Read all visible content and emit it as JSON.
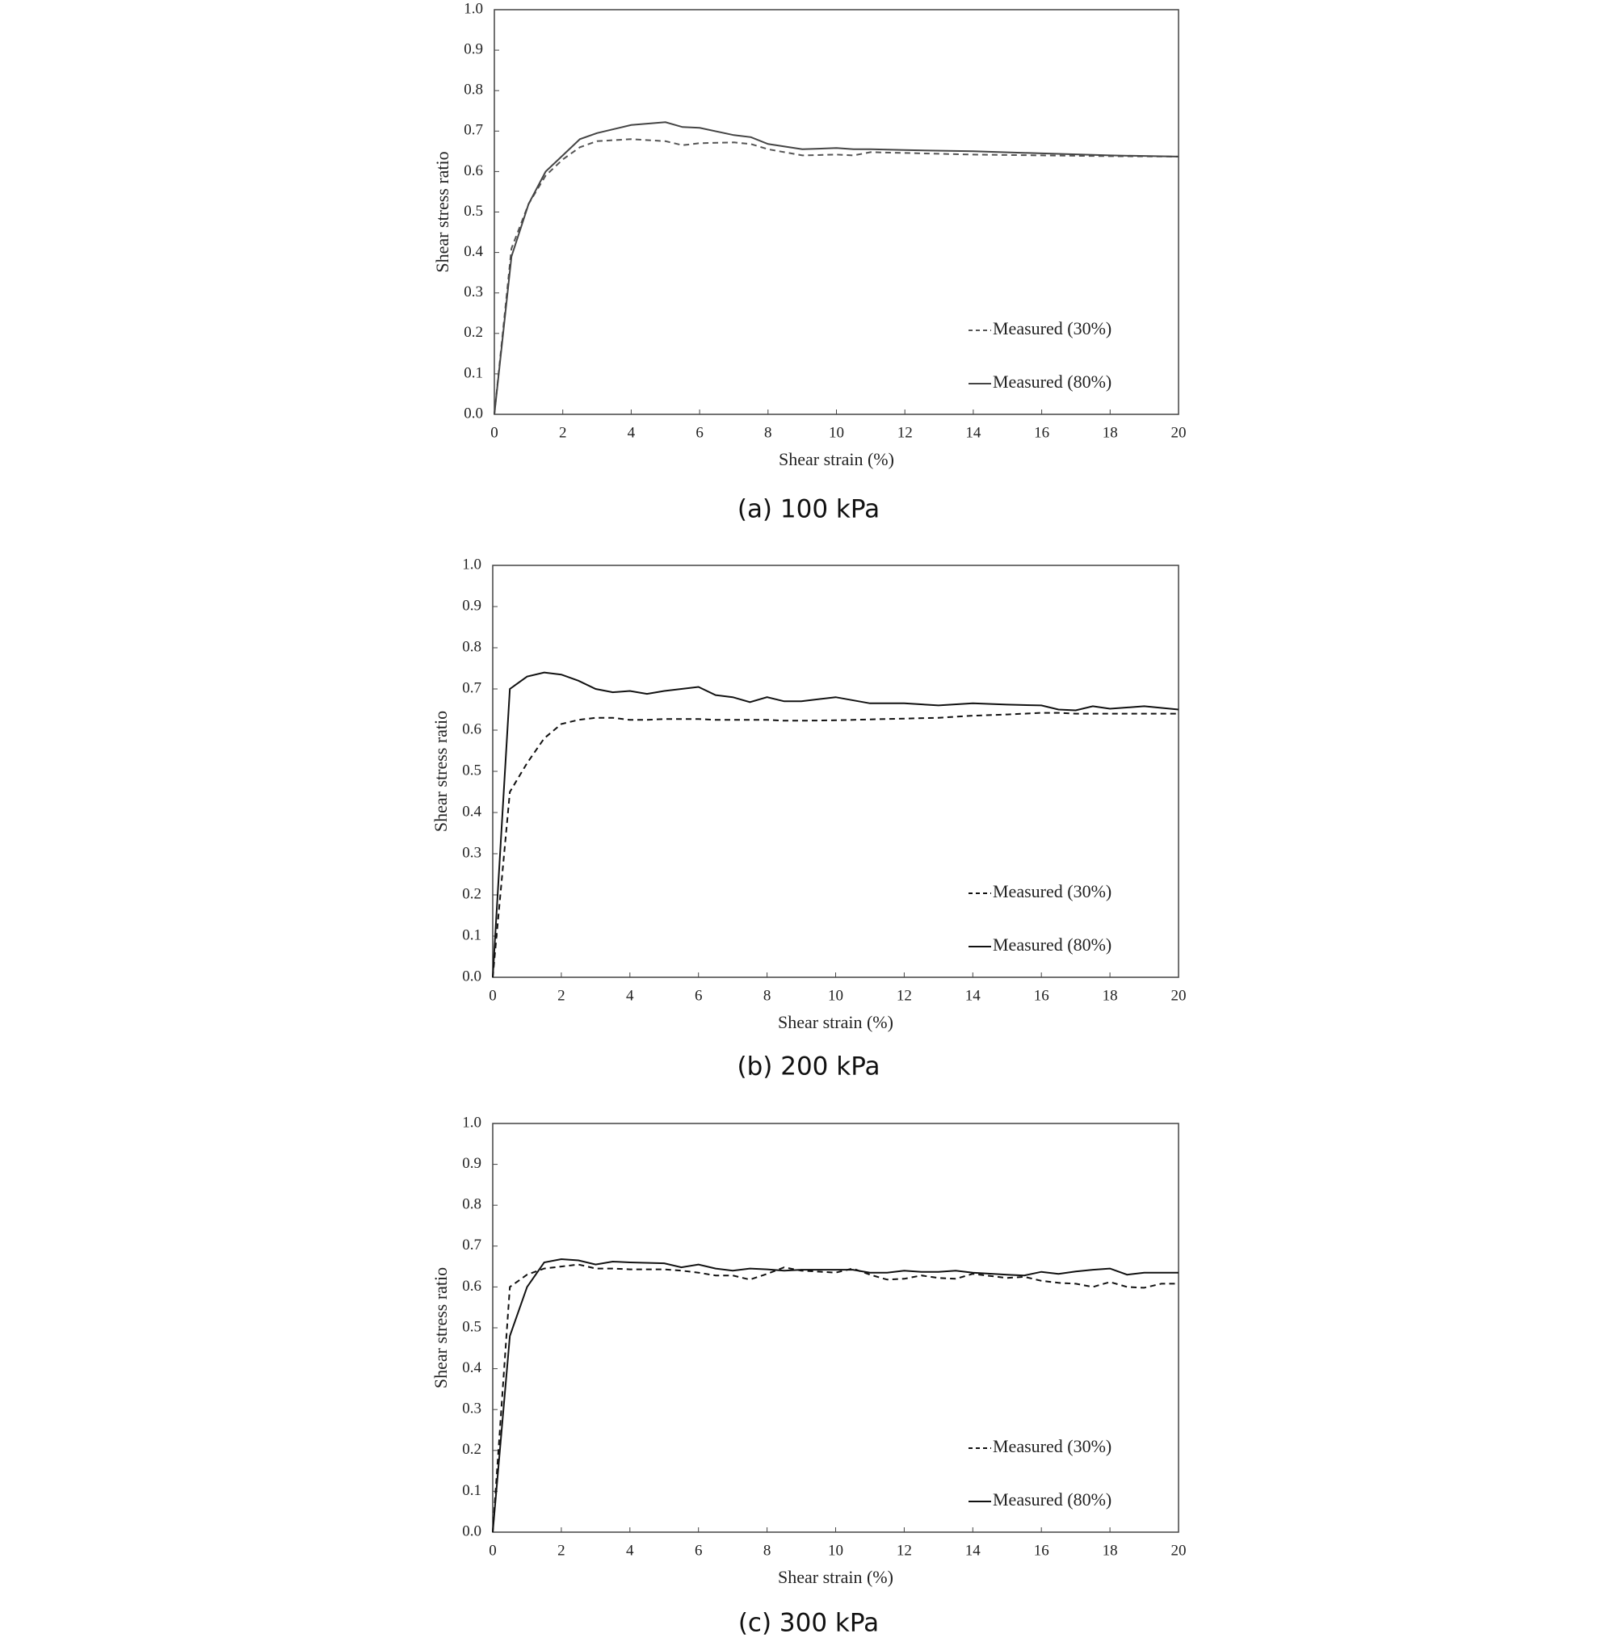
{
  "chart_data": [
    {
      "type": "line",
      "title": "(a) 100 kPa",
      "xlabel": "Shear strain (%)",
      "ylabel": "Shear stress ratio",
      "x": [
        0,
        0.5,
        1,
        1.5,
        2,
        2.5,
        3,
        4,
        5,
        5.5,
        6,
        7,
        7.5,
        8,
        9,
        10,
        10.5,
        11,
        12,
        14,
        16,
        18,
        20
      ],
      "series": [
        {
          "name": "Measured (30%)",
          "color": "#555555",
          "linestyle": "dashed",
          "values": [
            0,
            0.41,
            0.52,
            0.59,
            0.63,
            0.66,
            0.675,
            0.68,
            0.675,
            0.665,
            0.67,
            0.672,
            0.668,
            0.655,
            0.64,
            0.642,
            0.64,
            0.648,
            0.646,
            0.642,
            0.64,
            0.638,
            0.637
          ]
        },
        {
          "name": "Measured (80%)",
          "color": "#444444",
          "linestyle": "solid",
          "values": [
            0,
            0.39,
            0.52,
            0.6,
            0.64,
            0.68,
            0.695,
            0.715,
            0.722,
            0.71,
            0.708,
            0.69,
            0.685,
            0.668,
            0.655,
            0.658,
            0.655,
            0.655,
            0.653,
            0.65,
            0.645,
            0.64,
            0.637
          ]
        }
      ],
      "xlim": [
        0,
        20
      ],
      "ylim": [
        0,
        1
      ],
      "xticks": [
        0,
        2,
        4,
        6,
        8,
        10,
        12,
        14,
        16,
        18,
        20
      ],
      "yticks": [
        {
          "value": 0,
          "label": "0.0"
        },
        0.1,
        0.2,
        0.3,
        0.4,
        0.5,
        0.6,
        0.7,
        0.8,
        0.9,
        {
          "value": 1,
          "label": "1.0"
        }
      ],
      "legend": "lower right"
    },
    {
      "type": "line",
      "title": "(b) 200 kPa",
      "xlabel": "Shear strain (%)",
      "ylabel": "Shear stress ratio",
      "x": [
        0,
        0.5,
        1,
        1.5,
        2,
        2.5,
        3,
        3.5,
        4,
        4.5,
        5,
        6,
        6.5,
        7,
        7.5,
        8,
        8.5,
        9,
        10,
        11,
        12,
        13,
        14,
        15,
        16,
        16.5,
        17,
        17.5,
        18,
        19,
        20
      ],
      "series": [
        {
          "name": "Measured (30%)",
          "color": "#111111",
          "linestyle": "dashed",
          "values": [
            0,
            0.45,
            0.52,
            0.58,
            0.615,
            0.625,
            0.63,
            0.63,
            0.625,
            0.625,
            0.627,
            0.627,
            0.625,
            0.625,
            0.625,
            0.625,
            0.623,
            0.623,
            0.624,
            0.626,
            0.628,
            0.63,
            0.635,
            0.638,
            0.642,
            0.642,
            0.64,
            0.64,
            0.64,
            0.64,
            0.64
          ]
        },
        {
          "name": "Measured (80%)",
          "color": "#111111",
          "linestyle": "solid",
          "values": [
            0,
            0.7,
            0.73,
            0.74,
            0.735,
            0.72,
            0.7,
            0.692,
            0.695,
            0.688,
            0.695,
            0.705,
            0.685,
            0.68,
            0.668,
            0.68,
            0.67,
            0.67,
            0.68,
            0.665,
            0.665,
            0.66,
            0.665,
            0.662,
            0.66,
            0.65,
            0.648,
            0.658,
            0.652,
            0.658,
            0.65
          ]
        }
      ],
      "xlim": [
        0,
        20
      ],
      "ylim": [
        0,
        1
      ],
      "xticks": [
        0,
        2,
        4,
        6,
        8,
        10,
        12,
        14,
        16,
        18,
        20
      ],
      "yticks": [
        {
          "value": 0,
          "label": "0.0"
        },
        0.1,
        0.2,
        0.3,
        0.4,
        0.5,
        0.6,
        0.7,
        0.8,
        0.9,
        {
          "value": 1,
          "label": "1.0"
        }
      ],
      "legend": "lower right"
    },
    {
      "type": "line",
      "title": "(c) 300 kPa",
      "xlabel": "Shear strain (%)",
      "ylabel": "Shear stress ratio",
      "x": [
        0,
        0.5,
        1,
        1.5,
        2,
        2.5,
        3,
        3.5,
        4,
        5,
        5.5,
        6,
        6.5,
        7,
        7.5,
        8,
        8.5,
        9,
        10,
        10.5,
        11,
        11.5,
        12,
        12.5,
        13,
        13.5,
        14,
        15,
        15.5,
        16,
        16.5,
        17,
        17.5,
        18,
        18.5,
        19,
        19.5,
        20
      ],
      "series": [
        {
          "name": "Measured (30%)",
          "color": "#111111",
          "linestyle": "dashed",
          "values": [
            0,
            0.6,
            0.63,
            0.645,
            0.65,
            0.655,
            0.645,
            0.645,
            0.643,
            0.643,
            0.64,
            0.635,
            0.628,
            0.628,
            0.618,
            0.632,
            0.648,
            0.64,
            0.635,
            0.645,
            0.63,
            0.618,
            0.62,
            0.628,
            0.622,
            0.62,
            0.632,
            0.622,
            0.625,
            0.615,
            0.61,
            0.608,
            0.6,
            0.612,
            0.6,
            0.598,
            0.608,
            0.608
          ]
        },
        {
          "name": "Measured (80%)",
          "color": "#111111",
          "linestyle": "solid",
          "values": [
            0,
            0.48,
            0.6,
            0.66,
            0.668,
            0.665,
            0.655,
            0.662,
            0.66,
            0.658,
            0.648,
            0.655,
            0.645,
            0.64,
            0.645,
            0.643,
            0.64,
            0.642,
            0.642,
            0.642,
            0.635,
            0.635,
            0.64,
            0.637,
            0.637,
            0.64,
            0.635,
            0.63,
            0.628,
            0.637,
            0.632,
            0.638,
            0.642,
            0.645,
            0.63,
            0.635,
            0.635,
            0.635
          ]
        }
      ],
      "xlim": [
        0,
        20
      ],
      "ylim": [
        0,
        1
      ],
      "xticks": [
        0,
        2,
        4,
        6,
        8,
        10,
        12,
        14,
        16,
        18,
        20
      ],
      "yticks": [
        {
          "value": 0,
          "label": "0.0"
        },
        0.1,
        0.2,
        0.3,
        0.4,
        0.5,
        0.6,
        0.7,
        0.8,
        0.9,
        {
          "value": 1,
          "label": "1.0"
        }
      ],
      "legend": "lower right"
    }
  ]
}
